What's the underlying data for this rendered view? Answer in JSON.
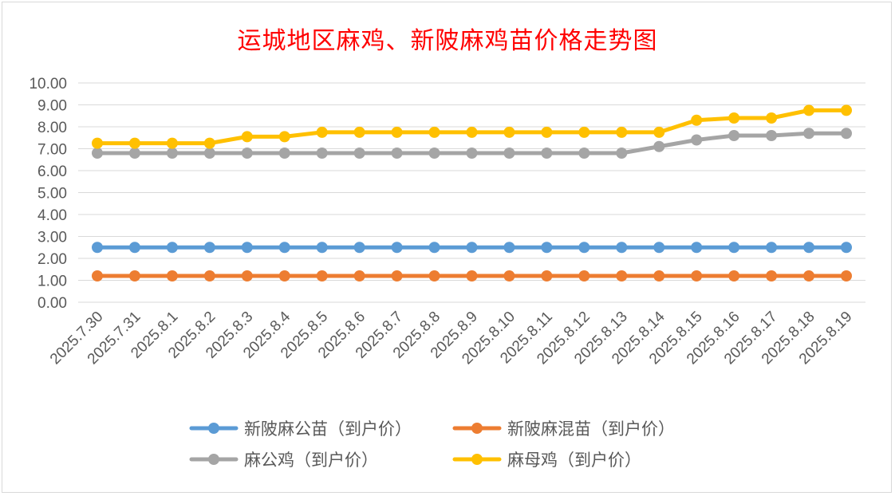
{
  "chart_data": {
    "type": "line",
    "title": "运城地区麻鸡、新陂麻鸡苗价格走势图",
    "xlabel": "",
    "ylabel": "",
    "ylim": [
      0,
      10
    ],
    "y_ticks": [
      "0.00",
      "1.00",
      "2.00",
      "3.00",
      "4.00",
      "5.00",
      "6.00",
      "7.00",
      "8.00",
      "9.00",
      "10.00"
    ],
    "grid": true,
    "legend_position": "bottom",
    "categories": [
      "2025.7.30",
      "2025.7.31",
      "2025.8.1",
      "2025.8.2",
      "2025.8.3",
      "2025.8.4",
      "2025.8.5",
      "2025.8.6",
      "2025.8.7",
      "2025.8.8",
      "2025.8.9",
      "2025.8.10",
      "2025.8.11",
      "2025.8.12",
      "2025.8.13",
      "2025.8.14",
      "2025.8.15",
      "2025.8.16",
      "2025.8.17",
      "2025.8.18",
      "2025.8.19"
    ],
    "series": [
      {
        "name": "新陂麻公苗（到户价）",
        "color": "#5b9bd5",
        "values": [
          2.5,
          2.5,
          2.5,
          2.5,
          2.5,
          2.5,
          2.5,
          2.5,
          2.5,
          2.5,
          2.5,
          2.5,
          2.5,
          2.5,
          2.5,
          2.5,
          2.5,
          2.5,
          2.5,
          2.5,
          2.5
        ]
      },
      {
        "name": "新陂麻混苗（到户价）",
        "color": "#ed7d31",
        "values": [
          1.2,
          1.2,
          1.2,
          1.2,
          1.2,
          1.2,
          1.2,
          1.2,
          1.2,
          1.2,
          1.2,
          1.2,
          1.2,
          1.2,
          1.2,
          1.2,
          1.2,
          1.2,
          1.2,
          1.2,
          1.2
        ]
      },
      {
        "name": "麻公鸡（到户价）",
        "color": "#a5a5a5",
        "values": [
          6.8,
          6.8,
          6.8,
          6.8,
          6.8,
          6.8,
          6.8,
          6.8,
          6.8,
          6.8,
          6.8,
          6.8,
          6.8,
          6.8,
          6.8,
          7.1,
          7.4,
          7.6,
          7.6,
          7.7,
          7.7
        ]
      },
      {
        "name": "麻母鸡（到户价）",
        "color": "#ffc000",
        "values": [
          7.25,
          7.25,
          7.25,
          7.25,
          7.55,
          7.55,
          7.75,
          7.75,
          7.75,
          7.75,
          7.75,
          7.75,
          7.75,
          7.75,
          7.75,
          7.75,
          8.3,
          8.4,
          8.4,
          8.75,
          8.75
        ]
      }
    ]
  }
}
